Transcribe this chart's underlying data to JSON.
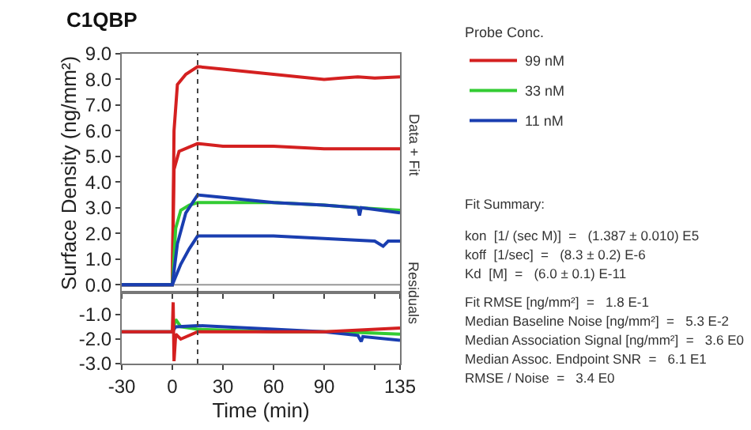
{
  "chart_data": [
    {
      "type": "line",
      "title": "C1QBP",
      "ylabel": "Surface Density (ng/mm²)",
      "legend_title": "Probe Conc.",
      "legend": "right",
      "tick_labels": "y",
      "xlim": [
        -30,
        135
      ],
      "xticks": [
        {
          "value": -30,
          "label": null
        },
        {
          "value": 0,
          "label": null
        },
        {
          "value": 30,
          "label": null
        },
        {
          "value": 60,
          "label": null
        },
        {
          "value": 90,
          "label": null
        },
        {
          "value": 120,
          "label": null
        },
        {
          "value": 135,
          "label": null
        }
      ],
      "ylim": [
        -0.3,
        9.0
      ],
      "yticks": [
        {
          "value": 0,
          "label": "0.0"
        },
        {
          "value": 1,
          "label": "1.0"
        },
        {
          "value": 2,
          "label": "2.0"
        },
        {
          "value": 3,
          "label": "3.0"
        },
        {
          "value": 4,
          "label": "4.0"
        },
        {
          "value": 5,
          "label": "5.0"
        },
        {
          "value": 6,
          "label": "6.0"
        },
        {
          "value": 7,
          "label": "7.0"
        },
        {
          "value": 8,
          "label": "8.0"
        },
        {
          "value": 9,
          "label": "9.0"
        }
      ],
      "grid": false,
      "marker": "none",
      "line_style": "solid",
      "ref_lines": [
        {
          "axis": "x",
          "value": 15,
          "line_style": "dotted",
          "color": "#444444"
        },
        {
          "axis": "y",
          "value": 0,
          "line_style": "solid",
          "color": "#999999"
        }
      ],
      "annotations": [
        "Data + Fit",
        "Fit Summary:",
        "kon  [1/ (sec M)]  =   (1.387 ± 0.010) E5",
        "koff  [1/sec]  =   (8.3 ± 0.2) E-6",
        "Kd  [M]  =   (6.0 ± 0.1) E-11",
        "Fit RMSE [ng/mm²]  =   1.8 E-1",
        "Median Baseline Noise [ng/mm²]  =   5.3 E-2",
        "Median Association Signal [ng/mm²]  =   3.6 E0",
        "Median Assoc. Endpoint SNR  =   6.1 E1",
        "RMSE / Noise  =   3.4 E0"
      ],
      "series": [
        {
          "name": "99 nM",
          "color": "#d42020",
          "x": [
            -30,
            -15,
            0,
            1,
            3,
            8,
            15,
            30,
            60,
            90,
            100,
            110,
            120,
            135
          ],
          "values": [
            0,
            0,
            0,
            6.0,
            7.8,
            8.2,
            8.5,
            8.4,
            8.2,
            8.0,
            8.05,
            8.1,
            8.05,
            8.1
          ]
        },
        {
          "color": "#d42020",
          "x": [
            -30,
            -15,
            0,
            1,
            4,
            15,
            30,
            60,
            90,
            135
          ],
          "values": [
            0,
            0,
            0,
            4.5,
            5.2,
            5.5,
            5.4,
            5.4,
            5.3,
            5.3
          ]
        },
        {
          "name": "33 nM",
          "color": "#33cc33",
          "x": [
            -30,
            0,
            2,
            5,
            10,
            15,
            30,
            60,
            90,
            110,
            135
          ],
          "values": [
            0,
            0,
            2.2,
            2.9,
            3.1,
            3.2,
            3.2,
            3.2,
            3.1,
            3.0,
            2.9
          ]
        },
        {
          "name": "11 nM",
          "color": "#1a3eb0",
          "x": [
            -30,
            0,
            3,
            8,
            15,
            30,
            60,
            90,
            110,
            111,
            112,
            135
          ],
          "values": [
            0,
            0,
            1.6,
            2.8,
            3.5,
            3.4,
            3.2,
            3.1,
            3.0,
            2.7,
            3.0,
            2.8
          ]
        },
        {
          "color": "#1a3eb0",
          "x": [
            -30,
            0,
            5,
            10,
            15,
            30,
            60,
            90,
            120,
            125,
            128,
            135
          ],
          "values": [
            0,
            0,
            0.8,
            1.4,
            1.9,
            1.9,
            1.9,
            1.8,
            1.7,
            1.5,
            1.7,
            1.7
          ]
        }
      ]
    },
    {
      "type": "line",
      "xlabel": "Time (min)",
      "xlim": [
        -30,
        135
      ],
      "xticks": [
        -30,
        0,
        30,
        60,
        90,
        {
          "value": 120,
          "label": null
        },
        135
      ],
      "ylim": [
        -3.0,
        -0.1
      ],
      "yticks": [
        {
          "value": -1,
          "label": "-1.0"
        },
        {
          "value": -2,
          "label": "-2.0"
        },
        {
          "value": -3,
          "label": "-3.0"
        }
      ],
      "grid": false,
      "marker": "none",
      "line_style": "solid",
      "ref_lines": [
        {
          "axis": "x",
          "value": 15,
          "line_style": "dotted",
          "color": "#444444"
        }
      ],
      "annotations": [
        "Residuals"
      ],
      "series": [
        {
          "color": "#33cc33",
          "x": [
            -30,
            0,
            2,
            5,
            15,
            60,
            100,
            135
          ],
          "values": [
            -1.7,
            -1.7,
            -1.2,
            -1.5,
            -1.6,
            -1.7,
            -1.7,
            -1.8
          ]
        },
        {
          "color": "#1a3eb0",
          "x": [
            -30,
            0,
            2,
            15,
            60,
            90,
            110,
            112,
            113,
            135
          ],
          "values": [
            -1.7,
            -1.7,
            -1.5,
            -1.45,
            -1.6,
            -1.7,
            -1.85,
            -2.1,
            -1.9,
            -2.05
          ]
        },
        {
          "color": "#d42020",
          "x": [
            -30,
            0,
            0.5,
            1,
            2,
            5,
            15,
            60,
            90,
            135
          ],
          "values": [
            -1.7,
            -1.7,
            -0.5,
            -2.9,
            -1.8,
            -2.0,
            -1.7,
            -1.7,
            -1.7,
            -1.55
          ]
        }
      ]
    }
  ]
}
